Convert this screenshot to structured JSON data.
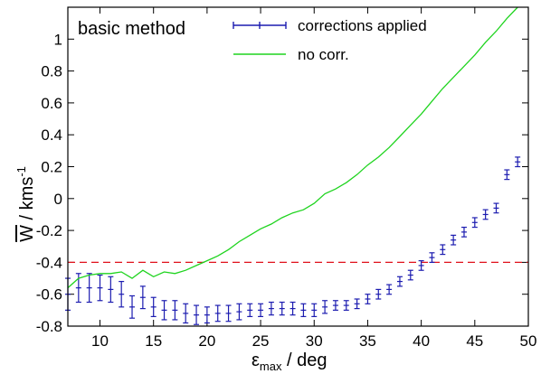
{
  "chart_data": {
    "type": "line",
    "annotation": "basic method",
    "xlabel": {
      "main": "ε",
      "sub": "max",
      "rest": " / deg"
    },
    "ylabel": {
      "main": "W",
      "rest": " / kms",
      "sup": "-1"
    },
    "xlim": [
      7,
      50
    ],
    "ylim": [
      -0.8,
      1.2
    ],
    "xticks": [
      10,
      15,
      20,
      25,
      30,
      35,
      40,
      45,
      50
    ],
    "xtick_labels": [
      "10",
      "15",
      "20",
      "25",
      "30",
      "35",
      "40",
      "45",
      "50"
    ],
    "yticks": [
      -0.8,
      -0.6,
      -0.4,
      -0.2,
      0,
      0.2,
      0.4,
      0.6,
      0.8,
      1
    ],
    "ytick_labels": [
      "-0.8",
      "-0.6",
      "-0.4",
      "-0.2",
      "0",
      "0.2",
      "0.4",
      "0.6",
      "0.8",
      "1"
    ],
    "legend_position": "top",
    "reference_line": {
      "y": -0.4,
      "color": "#e0101a"
    },
    "series": [
      {
        "name": "corrections applied",
        "kind": "errorbar",
        "color": "#1c1cb0",
        "x": [
          7,
          8,
          9,
          10,
          11,
          12,
          13,
          14,
          15,
          16,
          17,
          18,
          19,
          20,
          21,
          22,
          23,
          24,
          25,
          26,
          27,
          28,
          29,
          30,
          31,
          32,
          33,
          34,
          35,
          36,
          37,
          38,
          39,
          40,
          41,
          42,
          43,
          44,
          45,
          46,
          47,
          48,
          49
        ],
        "y": [
          -0.6,
          -0.56,
          -0.56,
          -0.56,
          -0.57,
          -0.6,
          -0.68,
          -0.62,
          -0.68,
          -0.7,
          -0.7,
          -0.72,
          -0.73,
          -0.73,
          -0.72,
          -0.72,
          -0.71,
          -0.7,
          -0.7,
          -0.69,
          -0.69,
          -0.69,
          -0.7,
          -0.7,
          -0.68,
          -0.67,
          -0.67,
          -0.66,
          -0.63,
          -0.6,
          -0.57,
          -0.52,
          -0.48,
          -0.42,
          -0.37,
          -0.32,
          -0.26,
          -0.21,
          -0.15,
          -0.1,
          -0.06,
          0.15,
          0.23
        ],
        "err": [
          0.1,
          0.09,
          0.09,
          0.08,
          0.08,
          0.08,
          0.07,
          0.07,
          0.06,
          0.06,
          0.06,
          0.06,
          0.06,
          0.05,
          0.05,
          0.05,
          0.05,
          0.04,
          0.04,
          0.04,
          0.04,
          0.04,
          0.04,
          0.04,
          0.04,
          0.03,
          0.03,
          0.03,
          0.03,
          0.03,
          0.03,
          0.03,
          0.03,
          0.03,
          0.03,
          0.03,
          0.03,
          0.03,
          0.03,
          0.03,
          0.03,
          0.03,
          0.03
        ]
      },
      {
        "name": "no corr.",
        "kind": "line",
        "color": "#1fd41f",
        "x": [
          7,
          8,
          9,
          10,
          11,
          12,
          13,
          14,
          15,
          16,
          17,
          18,
          19,
          20,
          21,
          22,
          23,
          24,
          25,
          26,
          27,
          28,
          29,
          30,
          31,
          32,
          33,
          34,
          35,
          36,
          37,
          38,
          39,
          40,
          41,
          42,
          43,
          44,
          45,
          46,
          47,
          48,
          49
        ],
        "y": [
          -0.56,
          -0.5,
          -0.48,
          -0.47,
          -0.47,
          -0.46,
          -0.5,
          -0.45,
          -0.49,
          -0.46,
          -0.47,
          -0.45,
          -0.42,
          -0.39,
          -0.36,
          -0.32,
          -0.27,
          -0.23,
          -0.19,
          -0.16,
          -0.12,
          -0.09,
          -0.07,
          -0.03,
          0.03,
          0.06,
          0.1,
          0.15,
          0.21,
          0.26,
          0.32,
          0.39,
          0.46,
          0.53,
          0.61,
          0.69,
          0.76,
          0.83,
          0.9,
          0.98,
          1.05,
          1.13,
          1.2
        ]
      }
    ]
  }
}
